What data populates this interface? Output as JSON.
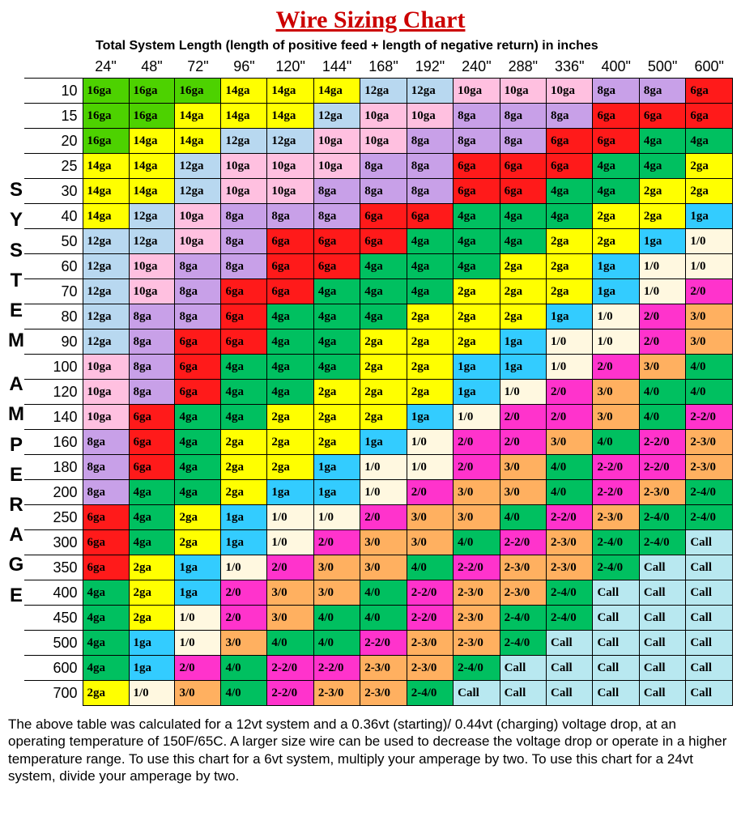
{
  "title": "Wire Sizing Chart",
  "subtitle": "Total System Length (length of positive feed + length of negative return) in inches",
  "y_axis_label": "SYSTEM AMPERAGE",
  "colors": {
    "g16": "#4dd200",
    "y14": "#ffff00",
    "lb12": "#b8d8f0",
    "pk10": "#ffc0e0",
    "pu8": "#c8a0e8",
    "r6": "#ff1a1a",
    "gr4": "#00c060",
    "y2": "#ffff00",
    "b1": "#33ccff",
    "cr10": "#fff8e0",
    "m20": "#ff33cc",
    "or30": "#ffb060",
    "g40": "#00c060",
    "m220": "#ff33cc",
    "or230": "#ffb060",
    "g240": "#00c060",
    "lbCall": "#b8e8f0"
  },
  "column_headers": [
    "24\"",
    "48\"",
    "72\"",
    "96\"",
    "120\"",
    "144\"",
    "168\"",
    "192\"",
    "240\"",
    "288\"",
    "336\"",
    "400\"",
    "500\"",
    "600\""
  ],
  "row_headers": [
    "10",
    "15",
    "20",
    "25",
    "30",
    "40",
    "50",
    "60",
    "70",
    "80",
    "90",
    "100",
    "120",
    "140",
    "160",
    "180",
    "200",
    "250",
    "300",
    "350",
    "400",
    "450",
    "500",
    "600",
    "700"
  ],
  "cells": [
    [
      [
        "16ga",
        "g16"
      ],
      [
        "16ga",
        "g16"
      ],
      [
        "16ga",
        "g16"
      ],
      [
        "14ga",
        "y14"
      ],
      [
        "14ga",
        "y14"
      ],
      [
        "14ga",
        "y14"
      ],
      [
        "12ga",
        "lb12"
      ],
      [
        "12ga",
        "lb12"
      ],
      [
        "10ga",
        "pk10"
      ],
      [
        "10ga",
        "pk10"
      ],
      [
        "10ga",
        "pk10"
      ],
      [
        "8ga",
        "pu8"
      ],
      [
        "8ga",
        "pu8"
      ],
      [
        "6ga",
        "r6"
      ]
    ],
    [
      [
        "16ga",
        "g16"
      ],
      [
        "16ga",
        "g16"
      ],
      [
        "14ga",
        "y14"
      ],
      [
        "14ga",
        "y14"
      ],
      [
        "14ga",
        "y14"
      ],
      [
        "12ga",
        "lb12"
      ],
      [
        "10ga",
        "pk10"
      ],
      [
        "10ga",
        "pk10"
      ],
      [
        "8ga",
        "pu8"
      ],
      [
        "8ga",
        "pu8"
      ],
      [
        "8ga",
        "pu8"
      ],
      [
        "6ga",
        "r6"
      ],
      [
        "6ga",
        "r6"
      ],
      [
        "6ga",
        "r6"
      ]
    ],
    [
      [
        "16ga",
        "g16"
      ],
      [
        "14ga",
        "y14"
      ],
      [
        "14ga",
        "y14"
      ],
      [
        "12ga",
        "lb12"
      ],
      [
        "12ga",
        "lb12"
      ],
      [
        "10ga",
        "pk10"
      ],
      [
        "10ga",
        "pk10"
      ],
      [
        "8ga",
        "pu8"
      ],
      [
        "8ga",
        "pu8"
      ],
      [
        "8ga",
        "pu8"
      ],
      [
        "6ga",
        "r6"
      ],
      [
        "6ga",
        "r6"
      ],
      [
        "4ga",
        "gr4"
      ],
      [
        "4ga",
        "gr4"
      ]
    ],
    [
      [
        "14ga",
        "y14"
      ],
      [
        "14ga",
        "y14"
      ],
      [
        "12ga",
        "lb12"
      ],
      [
        "10ga",
        "pk10"
      ],
      [
        "10ga",
        "pk10"
      ],
      [
        "10ga",
        "pk10"
      ],
      [
        "8ga",
        "pu8"
      ],
      [
        "8ga",
        "pu8"
      ],
      [
        "6ga",
        "r6"
      ],
      [
        "6ga",
        "r6"
      ],
      [
        "6ga",
        "r6"
      ],
      [
        "4ga",
        "gr4"
      ],
      [
        "4ga",
        "gr4"
      ],
      [
        "2ga",
        "y2"
      ]
    ],
    [
      [
        "14ga",
        "y14"
      ],
      [
        "14ga",
        "y14"
      ],
      [
        "12ga",
        "lb12"
      ],
      [
        "10ga",
        "pk10"
      ],
      [
        "10ga",
        "pk10"
      ],
      [
        "8ga",
        "pu8"
      ],
      [
        "8ga",
        "pu8"
      ],
      [
        "8ga",
        "pu8"
      ],
      [
        "6ga",
        "r6"
      ],
      [
        "6ga",
        "r6"
      ],
      [
        "4ga",
        "gr4"
      ],
      [
        "4ga",
        "gr4"
      ],
      [
        "2ga",
        "y2"
      ],
      [
        "2ga",
        "y2"
      ]
    ],
    [
      [
        "14ga",
        "y14"
      ],
      [
        "12ga",
        "lb12"
      ],
      [
        "10ga",
        "pk10"
      ],
      [
        "8ga",
        "pu8"
      ],
      [
        "8ga",
        "pu8"
      ],
      [
        "8ga",
        "pu8"
      ],
      [
        "6ga",
        "r6"
      ],
      [
        "6ga",
        "r6"
      ],
      [
        "4ga",
        "gr4"
      ],
      [
        "4ga",
        "gr4"
      ],
      [
        "4ga",
        "gr4"
      ],
      [
        "2ga",
        "y2"
      ],
      [
        "2ga",
        "y2"
      ],
      [
        "1ga",
        "b1"
      ]
    ],
    [
      [
        "12ga",
        "lb12"
      ],
      [
        "12ga",
        "lb12"
      ],
      [
        "10ga",
        "pk10"
      ],
      [
        "8ga",
        "pu8"
      ],
      [
        "6ga",
        "r6"
      ],
      [
        "6ga",
        "r6"
      ],
      [
        "6ga",
        "r6"
      ],
      [
        "4ga",
        "gr4"
      ],
      [
        "4ga",
        "gr4"
      ],
      [
        "4ga",
        "gr4"
      ],
      [
        "2ga",
        "y2"
      ],
      [
        "2ga",
        "y2"
      ],
      [
        "1ga",
        "b1"
      ],
      [
        "1/0",
        "cr10"
      ]
    ],
    [
      [
        "12ga",
        "lb12"
      ],
      [
        "10ga",
        "pk10"
      ],
      [
        "8ga",
        "pu8"
      ],
      [
        "8ga",
        "pu8"
      ],
      [
        "6ga",
        "r6"
      ],
      [
        "6ga",
        "r6"
      ],
      [
        "4ga",
        "gr4"
      ],
      [
        "4ga",
        "gr4"
      ],
      [
        "4ga",
        "gr4"
      ],
      [
        "2ga",
        "y2"
      ],
      [
        "2ga",
        "y2"
      ],
      [
        "1ga",
        "b1"
      ],
      [
        "1/0",
        "cr10"
      ],
      [
        "1/0",
        "cr10"
      ]
    ],
    [
      [
        "12ga",
        "lb12"
      ],
      [
        "10ga",
        "pk10"
      ],
      [
        "8ga",
        "pu8"
      ],
      [
        "6ga",
        "r6"
      ],
      [
        "6ga",
        "r6"
      ],
      [
        "4ga",
        "gr4"
      ],
      [
        "4ga",
        "gr4"
      ],
      [
        "4ga",
        "gr4"
      ],
      [
        "2ga",
        "y2"
      ],
      [
        "2ga",
        "y2"
      ],
      [
        "2ga",
        "y2"
      ],
      [
        "1ga",
        "b1"
      ],
      [
        "1/0",
        "cr10"
      ],
      [
        "2/0",
        "m20"
      ]
    ],
    [
      [
        "12ga",
        "lb12"
      ],
      [
        "8ga",
        "pu8"
      ],
      [
        "8ga",
        "pu8"
      ],
      [
        "6ga",
        "r6"
      ],
      [
        "4ga",
        "gr4"
      ],
      [
        "4ga",
        "gr4"
      ],
      [
        "4ga",
        "gr4"
      ],
      [
        "2ga",
        "y2"
      ],
      [
        "2ga",
        "y2"
      ],
      [
        "2ga",
        "y2"
      ],
      [
        "1ga",
        "b1"
      ],
      [
        "1/0",
        "cr10"
      ],
      [
        "2/0",
        "m20"
      ],
      [
        "3/0",
        "or30"
      ]
    ],
    [
      [
        "12ga",
        "lb12"
      ],
      [
        "8ga",
        "pu8"
      ],
      [
        "6ga",
        "r6"
      ],
      [
        "6ga",
        "r6"
      ],
      [
        "4ga",
        "gr4"
      ],
      [
        "4ga",
        "gr4"
      ],
      [
        "2ga",
        "y2"
      ],
      [
        "2ga",
        "y2"
      ],
      [
        "2ga",
        "y2"
      ],
      [
        "1ga",
        "b1"
      ],
      [
        "1/0",
        "cr10"
      ],
      [
        "1/0",
        "cr10"
      ],
      [
        "2/0",
        "m20"
      ],
      [
        "3/0",
        "or30"
      ]
    ],
    [
      [
        "10ga",
        "pk10"
      ],
      [
        "8ga",
        "pu8"
      ],
      [
        "6ga",
        "r6"
      ],
      [
        "4ga",
        "gr4"
      ],
      [
        "4ga",
        "gr4"
      ],
      [
        "4ga",
        "gr4"
      ],
      [
        "2ga",
        "y2"
      ],
      [
        "2ga",
        "y2"
      ],
      [
        "1ga",
        "b1"
      ],
      [
        "1ga",
        "b1"
      ],
      [
        "1/0",
        "cr10"
      ],
      [
        "2/0",
        "m20"
      ],
      [
        "3/0",
        "or30"
      ],
      [
        "4/0",
        "g40"
      ]
    ],
    [
      [
        "10ga",
        "pk10"
      ],
      [
        "8ga",
        "pu8"
      ],
      [
        "6ga",
        "r6"
      ],
      [
        "4ga",
        "gr4"
      ],
      [
        "4ga",
        "gr4"
      ],
      [
        "2ga",
        "y2"
      ],
      [
        "2ga",
        "y2"
      ],
      [
        "2ga",
        "y2"
      ],
      [
        "1ga",
        "b1"
      ],
      [
        "1/0",
        "cr10"
      ],
      [
        "2/0",
        "m20"
      ],
      [
        "3/0",
        "or30"
      ],
      [
        "4/0",
        "g40"
      ],
      [
        "4/0",
        "g40"
      ]
    ],
    [
      [
        "10ga",
        "pk10"
      ],
      [
        "6ga",
        "r6"
      ],
      [
        "4ga",
        "gr4"
      ],
      [
        "4ga",
        "gr4"
      ],
      [
        "2ga",
        "y2"
      ],
      [
        "2ga",
        "y2"
      ],
      [
        "2ga",
        "y2"
      ],
      [
        "1ga",
        "b1"
      ],
      [
        "1/0",
        "cr10"
      ],
      [
        "2/0",
        "m20"
      ],
      [
        "2/0",
        "m20"
      ],
      [
        "3/0",
        "or30"
      ],
      [
        "4/0",
        "g40"
      ],
      [
        "2-2/0",
        "m220"
      ]
    ],
    [
      [
        "8ga",
        "pu8"
      ],
      [
        "6ga",
        "r6"
      ],
      [
        "4ga",
        "gr4"
      ],
      [
        "2ga",
        "y2"
      ],
      [
        "2ga",
        "y2"
      ],
      [
        "2ga",
        "y2"
      ],
      [
        "1ga",
        "b1"
      ],
      [
        "1/0",
        "cr10"
      ],
      [
        "2/0",
        "m20"
      ],
      [
        "2/0",
        "m20"
      ],
      [
        "3/0",
        "or30"
      ],
      [
        "4/0",
        "g40"
      ],
      [
        "2-2/0",
        "m220"
      ],
      [
        "2-3/0",
        "or230"
      ]
    ],
    [
      [
        "8ga",
        "pu8"
      ],
      [
        "6ga",
        "r6"
      ],
      [
        "4ga",
        "gr4"
      ],
      [
        "2ga",
        "y2"
      ],
      [
        "2ga",
        "y2"
      ],
      [
        "1ga",
        "b1"
      ],
      [
        "1/0",
        "cr10"
      ],
      [
        "1/0",
        "cr10"
      ],
      [
        "2/0",
        "m20"
      ],
      [
        "3/0",
        "or30"
      ],
      [
        "4/0",
        "g40"
      ],
      [
        "2-2/0",
        "m220"
      ],
      [
        "2-2/0",
        "m220"
      ],
      [
        "2-3/0",
        "or230"
      ]
    ],
    [
      [
        "8ga",
        "pu8"
      ],
      [
        "4ga",
        "gr4"
      ],
      [
        "4ga",
        "gr4"
      ],
      [
        "2ga",
        "y2"
      ],
      [
        "1ga",
        "b1"
      ],
      [
        "1ga",
        "b1"
      ],
      [
        "1/0",
        "cr10"
      ],
      [
        "2/0",
        "m20"
      ],
      [
        "3/0",
        "or30"
      ],
      [
        "3/0",
        "or30"
      ],
      [
        "4/0",
        "g40"
      ],
      [
        "2-2/0",
        "m220"
      ],
      [
        "2-3/0",
        "or230"
      ],
      [
        "2-4/0",
        "g240"
      ]
    ],
    [
      [
        "6ga",
        "r6"
      ],
      [
        "4ga",
        "gr4"
      ],
      [
        "2ga",
        "y2"
      ],
      [
        "1ga",
        "b1"
      ],
      [
        "1/0",
        "cr10"
      ],
      [
        "1/0",
        "cr10"
      ],
      [
        "2/0",
        "m20"
      ],
      [
        "3/0",
        "or30"
      ],
      [
        "3/0",
        "or30"
      ],
      [
        "4/0",
        "g40"
      ],
      [
        "2-2/0",
        "m220"
      ],
      [
        "2-3/0",
        "or230"
      ],
      [
        "2-4/0",
        "g240"
      ],
      [
        "2-4/0",
        "g240"
      ]
    ],
    [
      [
        "6ga",
        "r6"
      ],
      [
        "4ga",
        "gr4"
      ],
      [
        "2ga",
        "y2"
      ],
      [
        "1ga",
        "b1"
      ],
      [
        "1/0",
        "cr10"
      ],
      [
        "2/0",
        "m20"
      ],
      [
        "3/0",
        "or30"
      ],
      [
        "3/0",
        "or30"
      ],
      [
        "4/0",
        "g40"
      ],
      [
        "2-2/0",
        "m220"
      ],
      [
        "2-3/0",
        "or230"
      ],
      [
        "2-4/0",
        "g240"
      ],
      [
        "2-4/0",
        "g240"
      ],
      [
        "Call",
        "lbCall"
      ]
    ],
    [
      [
        "6ga",
        "r6"
      ],
      [
        "2ga",
        "y2"
      ],
      [
        "1ga",
        "b1"
      ],
      [
        "1/0",
        "cr10"
      ],
      [
        "2/0",
        "m20"
      ],
      [
        "3/0",
        "or30"
      ],
      [
        "3/0",
        "or30"
      ],
      [
        "4/0",
        "g40"
      ],
      [
        "2-2/0",
        "m220"
      ],
      [
        "2-3/0",
        "or230"
      ],
      [
        "2-3/0",
        "or230"
      ],
      [
        "2-4/0",
        "g240"
      ],
      [
        "Call",
        "lbCall"
      ],
      [
        "Call",
        "lbCall"
      ]
    ],
    [
      [
        "4ga",
        "gr4"
      ],
      [
        "2ga",
        "y2"
      ],
      [
        "1ga",
        "b1"
      ],
      [
        "2/0",
        "m20"
      ],
      [
        "3/0",
        "or30"
      ],
      [
        "3/0",
        "or30"
      ],
      [
        "4/0",
        "g40"
      ],
      [
        "2-2/0",
        "m220"
      ],
      [
        "2-3/0",
        "or230"
      ],
      [
        "2-3/0",
        "or230"
      ],
      [
        "2-4/0",
        "g240"
      ],
      [
        "Call",
        "lbCall"
      ],
      [
        "Call",
        "lbCall"
      ],
      [
        "Call",
        "lbCall"
      ]
    ],
    [
      [
        "4ga",
        "gr4"
      ],
      [
        "2ga",
        "y2"
      ],
      [
        "1/0",
        "cr10"
      ],
      [
        "2/0",
        "m20"
      ],
      [
        "3/0",
        "or30"
      ],
      [
        "4/0",
        "g40"
      ],
      [
        "4/0",
        "g40"
      ],
      [
        "2-2/0",
        "m220"
      ],
      [
        "2-3/0",
        "or230"
      ],
      [
        "2-4/0",
        "g240"
      ],
      [
        "2-4/0",
        "g240"
      ],
      [
        "Call",
        "lbCall"
      ],
      [
        "Call",
        "lbCall"
      ],
      [
        "Call",
        "lbCall"
      ]
    ],
    [
      [
        "4ga",
        "gr4"
      ],
      [
        "1ga",
        "b1"
      ],
      [
        "1/0",
        "cr10"
      ],
      [
        "3/0",
        "or30"
      ],
      [
        "4/0",
        "g40"
      ],
      [
        "4/0",
        "g40"
      ],
      [
        "2-2/0",
        "m220"
      ],
      [
        "2-3/0",
        "or230"
      ],
      [
        "2-3/0",
        "or230"
      ],
      [
        "2-4/0",
        "g240"
      ],
      [
        "Call",
        "lbCall"
      ],
      [
        "Call",
        "lbCall"
      ],
      [
        "Call",
        "lbCall"
      ],
      [
        "Call",
        "lbCall"
      ]
    ],
    [
      [
        "4ga",
        "gr4"
      ],
      [
        "1ga",
        "b1"
      ],
      [
        "2/0",
        "m20"
      ],
      [
        "4/0",
        "g40"
      ],
      [
        "2-2/0",
        "m220"
      ],
      [
        "2-2/0",
        "m220"
      ],
      [
        "2-3/0",
        "or230"
      ],
      [
        "2-3/0",
        "or230"
      ],
      [
        "2-4/0",
        "g240"
      ],
      [
        "Call",
        "lbCall"
      ],
      [
        "Call",
        "lbCall"
      ],
      [
        "Call",
        "lbCall"
      ],
      [
        "Call",
        "lbCall"
      ],
      [
        "Call",
        "lbCall"
      ]
    ],
    [
      [
        "2ga",
        "y2"
      ],
      [
        "1/0",
        "cr10"
      ],
      [
        "3/0",
        "or30"
      ],
      [
        "4/0",
        "g40"
      ],
      [
        "2-2/0",
        "m220"
      ],
      [
        "2-3/0",
        "or230"
      ],
      [
        "2-3/0",
        "or230"
      ],
      [
        "2-4/0",
        "g240"
      ],
      [
        "Call",
        "lbCall"
      ],
      [
        "Call",
        "lbCall"
      ],
      [
        "Call",
        "lbCall"
      ],
      [
        "Call",
        "lbCall"
      ],
      [
        "Call",
        "lbCall"
      ],
      [
        "Call",
        "lbCall"
      ]
    ]
  ],
  "footnote": "The above table was calculated for a 12vt system and a 0.36vt (starting)/ 0.44vt (charging) voltage drop, at an operating temperature of 150F/65C.  A larger size wire can be used to decrease the voltage drop or operate in a higher temperature range. To use this chart for a 6vt system, multiply your amperage by two. To use this chart for a 24vt system, divide your amperage by two."
}
